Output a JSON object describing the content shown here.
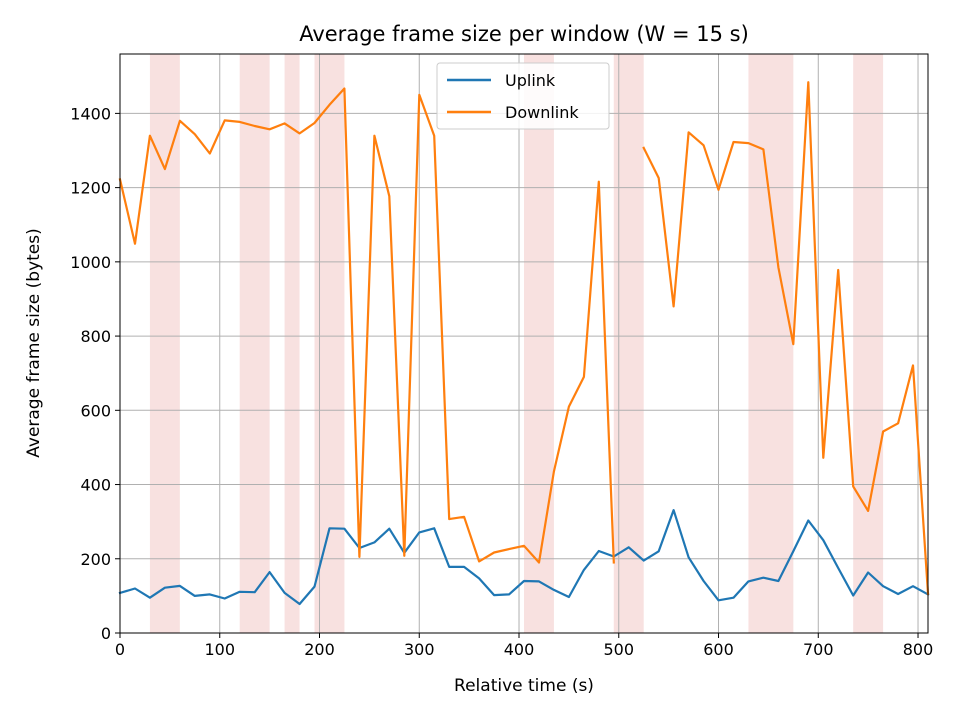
{
  "chart_data": {
    "type": "line",
    "title": "Average frame size per window (W = 15 s)",
    "xlabel": "Relative time (s)",
    "ylabel": "Average frame size (bytes)",
    "xlim": [
      0,
      810
    ],
    "ylim": [
      0,
      1560
    ],
    "xticks": [
      0,
      100,
      200,
      300,
      400,
      500,
      600,
      700,
      800
    ],
    "yticks": [
      0,
      200,
      400,
      600,
      800,
      1000,
      1200,
      1400
    ],
    "grid": true,
    "legend_position": "top-center",
    "shaded_intervals": [
      [
        30,
        60
      ],
      [
        120,
        150
      ],
      [
        165,
        180
      ],
      [
        195,
        225
      ],
      [
        405,
        435
      ],
      [
        495,
        525
      ],
      [
        630,
        675
      ],
      [
        735,
        765
      ]
    ],
    "shade_color": "#f8e1e0",
    "x": [
      0,
      15,
      30,
      45,
      60,
      75,
      90,
      105,
      120,
      135,
      150,
      165,
      180,
      195,
      210,
      225,
      240,
      255,
      270,
      285,
      300,
      315,
      330,
      345,
      360,
      375,
      390,
      405,
      420,
      435,
      450,
      465,
      480,
      495,
      510,
      525,
      540,
      555,
      570,
      585,
      600,
      615,
      630,
      645,
      660,
      675,
      690,
      705,
      720,
      735,
      750,
      765,
      780,
      795,
      810
    ],
    "series": [
      {
        "name": "Uplink",
        "color": "#1f77b4",
        "values": [
          108,
          120,
          95,
          122,
          127,
          100,
          104,
          93,
          111,
          110,
          164,
          108,
          78,
          125,
          282,
          281,
          229,
          244,
          281,
          216,
          271,
          282,
          178,
          178,
          147,
          102,
          104,
          140,
          139,
          116,
          97,
          170,
          221,
          206,
          231,
          195,
          220,
          331,
          204,
          140,
          88,
          95,
          139,
          149,
          140,
          220,
          303,
          250,
          175,
          101,
          163,
          126,
          105,
          126,
          104
        ]
      },
      {
        "name": "Downlink",
        "color": "#ff7f0e",
        "values": [
          1222,
          1049,
          1340,
          1250,
          1380,
          1344,
          1292,
          1381,
          1377,
          1366,
          1357,
          1373,
          1346,
          1374,
          1423,
          1467,
          205,
          1340,
          1177,
          208,
          1450,
          1340,
          307,
          313,
          193,
          217,
          226,
          235,
          190,
          435,
          610,
          690,
          1216,
          190,
          null,
          1307,
          1226,
          880,
          1349,
          1314,
          1194,
          1323,
          1320,
          1303,
          985,
          778,
          1484,
          472,
          978,
          395,
          329,
          543,
          565,
          721,
          106
        ]
      }
    ]
  }
}
